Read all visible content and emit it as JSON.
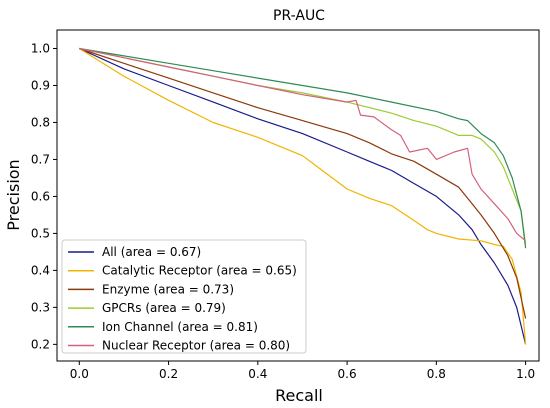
{
  "chart_data": {
    "type": "line",
    "title": "PR-AUC",
    "xlabel": "Recall",
    "ylabel": "Precision",
    "xlim": [
      -0.05,
      1.03
    ],
    "ylim": [
      0.155,
      1.05
    ],
    "xticks": [
      "0.0",
      "0.2",
      "0.4",
      "0.6",
      "0.8",
      "1.0"
    ],
    "yticks": [
      "0.2",
      "0.3",
      "0.4",
      "0.5",
      "0.6",
      "0.7",
      "0.8",
      "0.9",
      "1.0"
    ],
    "grid": false,
    "legend_position": "lower-left",
    "series": [
      {
        "name": "All (area = 0.67)",
        "color": "#1a1a8c",
        "x": [
          0.0,
          0.1,
          0.2,
          0.3,
          0.4,
          0.5,
          0.6,
          0.65,
          0.7,
          0.75,
          0.8,
          0.85,
          0.88,
          0.9,
          0.93,
          0.96,
          0.98,
          1.0
        ],
        "y": [
          1.0,
          0.945,
          0.9,
          0.855,
          0.81,
          0.77,
          0.72,
          0.695,
          0.67,
          0.635,
          0.6,
          0.55,
          0.51,
          0.47,
          0.42,
          0.36,
          0.3,
          0.2
        ]
      },
      {
        "name": "Catalytic Receptor (area = 0.65)",
        "color": "#f0b400",
        "x": [
          0.0,
          0.1,
          0.2,
          0.3,
          0.4,
          0.5,
          0.55,
          0.6,
          0.65,
          0.7,
          0.75,
          0.78,
          0.8,
          0.85,
          0.9,
          0.93,
          0.95,
          0.97,
          0.99,
          1.0
        ],
        "y": [
          1.0,
          0.925,
          0.86,
          0.8,
          0.76,
          0.71,
          0.665,
          0.62,
          0.595,
          0.575,
          0.535,
          0.51,
          0.5,
          0.485,
          0.48,
          0.47,
          0.465,
          0.43,
          0.34,
          0.2
        ]
      },
      {
        "name": "Enzyme (area = 0.73)",
        "color": "#8b3a0a",
        "x": [
          0.0,
          0.1,
          0.2,
          0.3,
          0.4,
          0.5,
          0.6,
          0.65,
          0.7,
          0.75,
          0.8,
          0.85,
          0.88,
          0.9,
          0.93,
          0.96,
          0.98,
          1.0
        ],
        "y": [
          1.0,
          0.96,
          0.92,
          0.88,
          0.84,
          0.805,
          0.77,
          0.745,
          0.715,
          0.695,
          0.66,
          0.625,
          0.58,
          0.55,
          0.5,
          0.44,
          0.38,
          0.27
        ]
      },
      {
        "name": "GPCRs (area = 0.79)",
        "color": "#9acd32",
        "x": [
          0.0,
          0.1,
          0.2,
          0.3,
          0.4,
          0.5,
          0.6,
          0.7,
          0.75,
          0.8,
          0.85,
          0.88,
          0.9,
          0.93,
          0.95,
          0.97,
          0.99,
          1.0
        ],
        "y": [
          1.0,
          0.975,
          0.95,
          0.925,
          0.9,
          0.88,
          0.855,
          0.825,
          0.805,
          0.79,
          0.765,
          0.765,
          0.755,
          0.72,
          0.68,
          0.62,
          0.56,
          0.47
        ]
      },
      {
        "name": "Ion Channel (area = 0.81)",
        "color": "#2e8b57",
        "x": [
          0.0,
          0.1,
          0.2,
          0.3,
          0.4,
          0.5,
          0.6,
          0.7,
          0.8,
          0.85,
          0.87,
          0.9,
          0.93,
          0.95,
          0.97,
          0.99,
          1.0
        ],
        "y": [
          1.0,
          0.98,
          0.96,
          0.94,
          0.92,
          0.9,
          0.88,
          0.855,
          0.83,
          0.81,
          0.805,
          0.77,
          0.745,
          0.71,
          0.65,
          0.56,
          0.46
        ]
      },
      {
        "name": "Nuclear Receptor (area = 0.80)",
        "color": "#d4607a",
        "x": [
          0.0,
          0.1,
          0.2,
          0.3,
          0.4,
          0.5,
          0.6,
          0.62,
          0.63,
          0.66,
          0.7,
          0.72,
          0.74,
          0.78,
          0.8,
          0.84,
          0.87,
          0.88,
          0.9,
          0.93,
          0.96,
          0.98,
          1.0
        ],
        "y": [
          1.0,
          0.975,
          0.95,
          0.925,
          0.9,
          0.875,
          0.855,
          0.86,
          0.82,
          0.815,
          0.78,
          0.765,
          0.72,
          0.73,
          0.7,
          0.72,
          0.73,
          0.66,
          0.62,
          0.58,
          0.54,
          0.5,
          0.48
        ]
      }
    ]
  }
}
